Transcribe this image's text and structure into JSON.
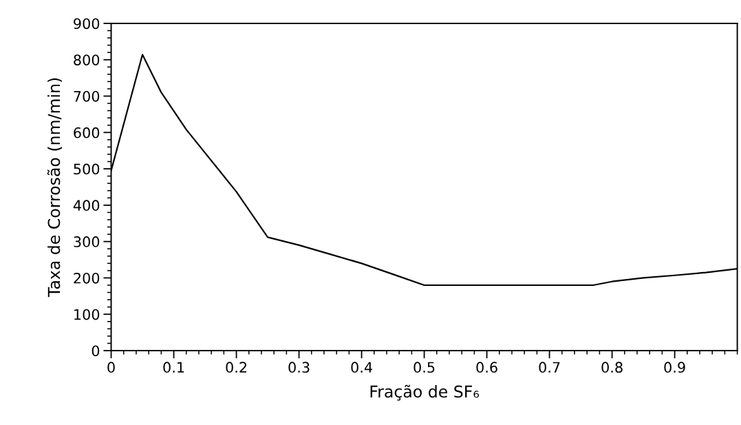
{
  "chart_data": {
    "type": "line",
    "xlabel": "Fração de SF₆",
    "ylabel": "Taxa de Corrosão (nm/min)",
    "x": [
      0,
      0.05,
      0.08,
      0.12,
      0.2,
      0.25,
      0.3,
      0.35,
      0.4,
      0.45,
      0.5,
      0.6,
      0.7,
      0.77,
      0.8,
      0.85,
      0.9,
      0.95,
      1.0
    ],
    "series": [
      {
        "color": "#000000",
        "values": [
          495,
          814,
          710,
          608,
          437,
          312,
          290,
          265,
          240,
          210,
          180,
          180,
          180,
          180,
          190,
          200,
          207,
          215,
          225
        ]
      }
    ],
    "xlim": [
      0,
      1
    ],
    "xticks": [
      0,
      0.1,
      0.2,
      0.3,
      0.4,
      0.5,
      0.6,
      0.7,
      0.8,
      0.9
    ],
    "ylim": [
      0,
      900
    ],
    "yticks": [
      0,
      100,
      200,
      300,
      400,
      500,
      600,
      700,
      800,
      900
    ],
    "grid": false,
    "marker": "none",
    "line_style": "solid"
  }
}
